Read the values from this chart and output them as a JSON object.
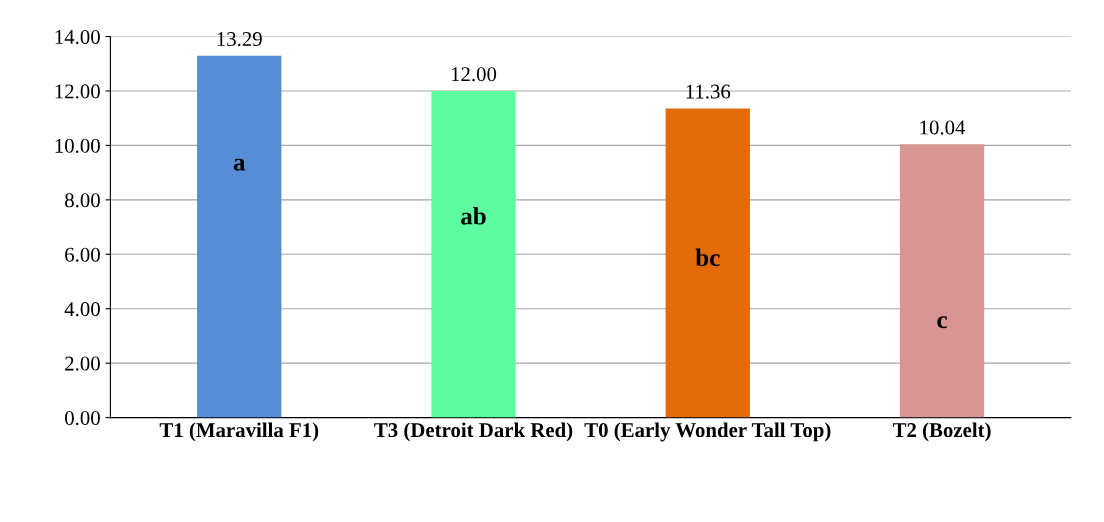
{
  "chart_data": {
    "type": "bar",
    "categories": [
      "T1 (Maravilla F1)",
      "T3 (Detroit Dark Red)",
      "T0 (Early Wonder Tall Top)",
      "T2 (Bozelt)"
    ],
    "values": [
      13.29,
      12.0,
      11.36,
      10.04
    ],
    "colors": [
      "#558ed5",
      "#5efca0",
      "#e36c09",
      "#d99594"
    ],
    "value_labels": [
      "13.29",
      "12.00",
      "11.36",
      "10.04"
    ],
    "ylim": [
      0,
      14
    ],
    "yticks": [
      {
        "value": 0,
        "label": "0.00"
      },
      {
        "value": 2,
        "label": "2.00"
      },
      {
        "value": 4,
        "label": "4.00"
      },
      {
        "value": 6,
        "label": "6.00"
      },
      {
        "value": 8,
        "label": "8.00"
      },
      {
        "value": 10,
        "label": "10.00"
      },
      {
        "value": 12,
        "label": "12.00"
      },
      {
        "value": 14,
        "label": "14.00"
      }
    ],
    "grid": "y",
    "annotations": [
      "a",
      "ab",
      "bc",
      "c"
    ]
  }
}
